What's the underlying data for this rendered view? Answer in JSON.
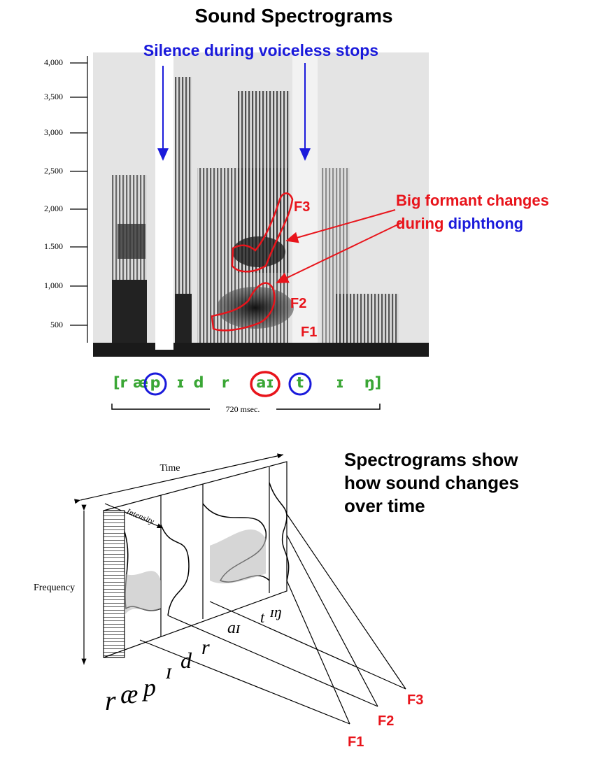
{
  "title": "Sound Spectrograms",
  "spectrogram": {
    "frequency_labels": [
      "4,000",
      "3,500",
      "3,000",
      "2,500",
      "2,000",
      "1.500",
      "1,000",
      "500"
    ],
    "silence_note": "Silence during voiceless stops",
    "formant_note": {
      "line1": "Big formant changes",
      "line2_red": "during",
      "line2_blue": "diphthong"
    },
    "formants": [
      "F3",
      "F2",
      "F1"
    ],
    "transcription": [
      "[r",
      "æ",
      "p",
      "ɪ",
      "d",
      "r",
      "aɪ",
      "t",
      "ɪ",
      "ŋ]"
    ],
    "duration": "720 msec."
  },
  "diagram": {
    "caption": [
      "Spectrograms show",
      "how sound changes",
      "over time"
    ],
    "axes": {
      "time": "Time",
      "intensity": "Intensity",
      "frequency": "Frequency"
    },
    "segments": [
      "r",
      "æ",
      "p",
      "ɪ",
      "d",
      "r",
      "aɪ",
      "t",
      "ɪŋ"
    ],
    "formants": [
      "F3",
      "F2",
      "F1"
    ]
  }
}
